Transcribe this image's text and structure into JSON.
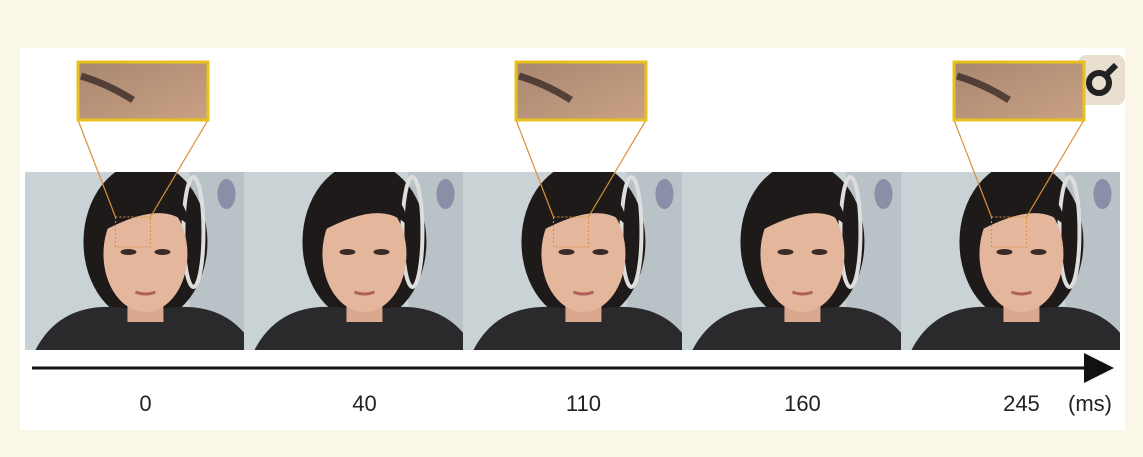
{
  "frames": [
    {
      "time": "0",
      "zoom": true
    },
    {
      "time": "40",
      "zoom": false
    },
    {
      "time": "110",
      "zoom": true
    },
    {
      "time": "160",
      "zoom": false
    },
    {
      "time": "245",
      "zoom": true
    }
  ],
  "unit": "(ms)"
}
